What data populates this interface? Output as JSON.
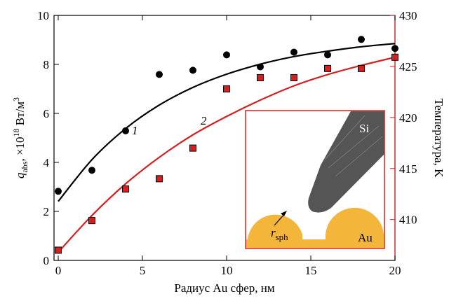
{
  "chart_data": {
    "type": "scatter",
    "x_label": "Радиус Au сфер, нм",
    "y_label": {
      "symbol": "q",
      "sub": "abs",
      "text": ", ×10",
      "sup": "18",
      "unit": " Вт/м",
      "unit_sup": "3"
    },
    "y2_label": "Температура, K",
    "xlim": [
      -0.25,
      20
    ],
    "xticks": [
      0,
      5,
      10,
      15,
      20
    ],
    "ylim": [
      0,
      10
    ],
    "yticks": [
      0,
      2,
      4,
      6,
      8,
      10
    ],
    "y2lim": [
      406,
      430
    ],
    "y2ticks": [
      410,
      415,
      420,
      425,
      430
    ],
    "y2_color": "#d42020",
    "x": [
      0,
      2,
      4,
      6,
      8,
      10,
      12,
      14,
      16,
      18,
      20
    ],
    "points": [
      {
        "marker": "circle",
        "color": "#000000",
        "axis": "y",
        "values": [
          2.82,
          3.68,
          5.29,
          7.59,
          7.76,
          8.39,
          7.9,
          8.5,
          8.39,
          9.02,
          8.65
        ]
      },
      {
        "marker": "square",
        "color": "#d42020",
        "axis": "y2",
        "values": [
          407.0,
          409.9,
          413.0,
          414.0,
          417.0,
          422.8,
          423.9,
          423.9,
          424.8,
          424.8,
          425.9
        ]
      }
    ],
    "series": [
      {
        "name": "1",
        "color": "#000000",
        "values": [
          2.41,
          4.11,
          5.38,
          6.34,
          7.06,
          7.6,
          8.01,
          8.32,
          8.54,
          8.72,
          8.85
        ]
      },
      {
        "name": "2",
        "color": "#d42020",
        "axis": "y2",
        "values": [
          406.8,
          410.4,
          413.5,
          416.1,
          418.3,
          420.1,
          421.7,
          423.1,
          424.2,
          425.1,
          425.9
        ]
      }
    ],
    "inset": {
      "tip": "Si",
      "substrate": "Au",
      "radius": {
        "symbol": "r",
        "sub": "sph"
      }
    }
  }
}
